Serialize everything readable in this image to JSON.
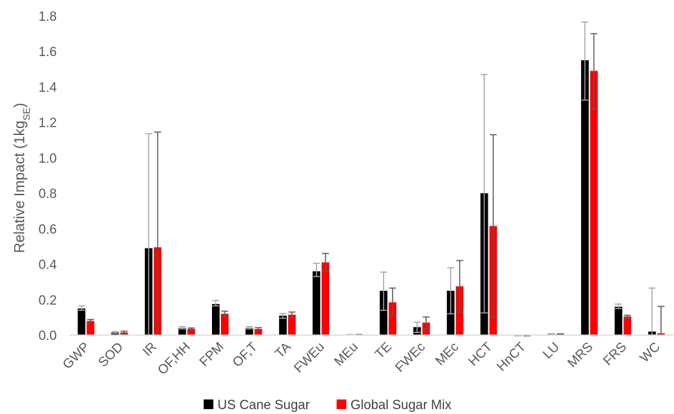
{
  "chart_data": {
    "type": "bar",
    "ylabel": "Relative Impact (1kg",
    "ylabel_sub": "SE",
    "ylabel_suffix": ")",
    "ylim": [
      0,
      1.8
    ],
    "yticks": [
      "0.0",
      "0.2",
      "0.4",
      "0.6",
      "0.8",
      "1.0",
      "1.2",
      "1.4",
      "1.6",
      "1.8"
    ],
    "ytick_values": [
      0,
      0.2,
      0.4,
      0.6,
      0.8,
      1.0,
      1.2,
      1.4,
      1.6,
      1.8
    ],
    "grid": false,
    "legend_position": "bottom",
    "categories": [
      "GWP",
      "SOD",
      "IR",
      "OF,HH",
      "FPM",
      "OF,T",
      "TA",
      "FWEu",
      "MEu",
      "TE",
      "FWEc",
      "MEc",
      "HCT",
      "HnCT",
      "LU",
      "MRS",
      "FRS",
      "WC"
    ],
    "series": [
      {
        "name": "US Cane Sugar",
        "color": "#000000",
        "error_color": "#a6a6a6",
        "values": [
          0.15,
          0.015,
          0.49,
          0.04,
          0.175,
          0.04,
          0.11,
          0.36,
          0.002,
          0.25,
          0.045,
          0.25,
          0.8,
          -0.003,
          0.006,
          1.55,
          0.16,
          0.02
        ],
        "err_low": [
          0.14,
          0.01,
          0.0,
          0.035,
          0.165,
          0.035,
          0.095,
          0.33,
          0.001,
          0.14,
          0.015,
          0.12,
          0.125,
          -0.004,
          0.004,
          1.325,
          0.15,
          0.0
        ],
        "err_high": [
          0.165,
          0.02,
          1.135,
          0.048,
          0.195,
          0.048,
          0.122,
          0.405,
          0.003,
          0.355,
          0.072,
          0.38,
          1.47,
          -0.002,
          0.008,
          1.765,
          0.175,
          0.265
        ]
      },
      {
        "name": "Global Sugar Mix",
        "color": "#ff0000",
        "error_color": "#595959",
        "values": [
          0.08,
          0.015,
          0.495,
          0.035,
          0.12,
          0.035,
          0.115,
          0.41,
          0.002,
          0.185,
          0.07,
          0.275,
          0.615,
          -0.003,
          0.005,
          1.49,
          0.105,
          0.01
        ],
        "err_low": [
          0.075,
          0.01,
          0.0,
          0.03,
          0.105,
          0.03,
          0.1,
          0.36,
          0.001,
          0.11,
          0.035,
          0.13,
          0.1,
          -0.004,
          0.003,
          1.275,
          0.095,
          0.0
        ],
        "err_high": [
          0.088,
          0.022,
          1.145,
          0.04,
          0.135,
          0.042,
          0.13,
          0.46,
          0.003,
          0.265,
          0.102,
          0.42,
          1.13,
          -0.002,
          0.007,
          1.7,
          0.112,
          0.162
        ]
      }
    ]
  }
}
